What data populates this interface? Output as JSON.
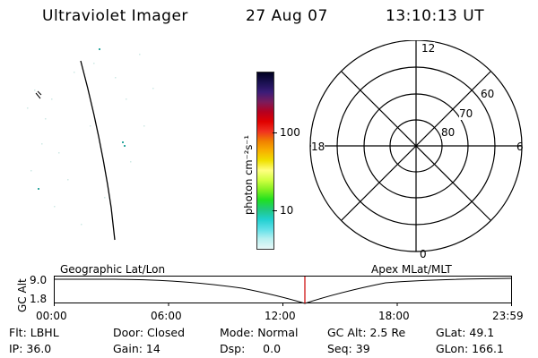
{
  "header": {
    "instrument": "Ultraviolet Imager",
    "date": "27 Aug 07",
    "time": "13:10:13 UT"
  },
  "colorbar": {
    "unit_label": "photon cm⁻²s⁻¹",
    "ticks": [
      "100",
      "10"
    ],
    "colors": [
      "#000020",
      "#1a1050",
      "#3a1c78",
      "#7a1c5c",
      "#b40020",
      "#e00000",
      "#f03020",
      "#f08000",
      "#f8b000",
      "#f0e000",
      "#ffff80",
      "#d0ff40",
      "#80f020",
      "#20e020",
      "#20c880",
      "#20d0d0",
      "#60e0e8",
      "#b8f0f0",
      "#e6f7f7"
    ]
  },
  "polar": {
    "top_label": "12",
    "left_label": "18",
    "right_label": "6",
    "bottom_label": "0",
    "ring_labels": [
      "60",
      "70",
      "80"
    ]
  },
  "timeline": {
    "axis_label": "GC Alt",
    "left_title": "Geographic Lat/Lon",
    "right_title": "Apex MLat/MLT",
    "y_top": "9.0",
    "y_bottom": "1.8",
    "x_ticks": [
      "00:00",
      "06:00",
      "12:00",
      "18:00",
      "23:59"
    ],
    "marker_color": "#cc0000"
  },
  "info": {
    "flt": "Flt: LBHL",
    "door": "Door: Closed",
    "mode": "Mode: Normal",
    "gc_alt": "GC Alt: 2.5 Re",
    "glat": "GLat:  49.1",
    "ip": "IP: 36.0",
    "gain": "Gain: 14",
    "dsp": "Dsp:     0.0",
    "seq": "Seq: 39",
    "glon": "GLon: 166.1"
  }
}
